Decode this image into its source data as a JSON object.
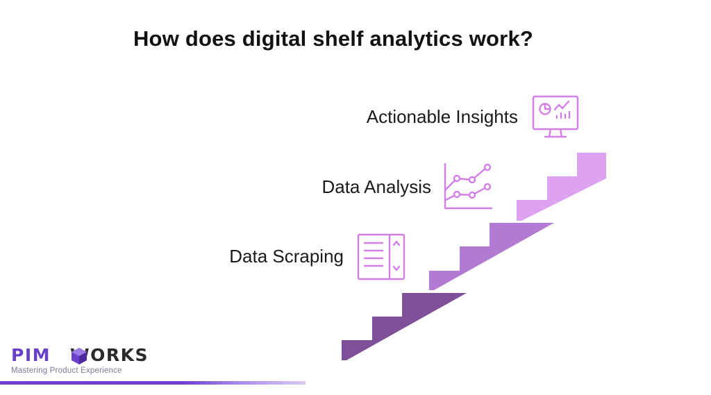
{
  "title": "How does digital shelf analytics work?",
  "steps": [
    {
      "label": "Actionable Insights",
      "icon": "monitor-dashboard-icon",
      "color": "#dda2f2"
    },
    {
      "label": "Data Analysis",
      "icon": "line-graph-icon",
      "color": "#b27ad2"
    },
    {
      "label": "Data Scraping",
      "icon": "document-list-icon",
      "color": "#7f4f99"
    }
  ],
  "icon_color": "#d37ee9",
  "logo": {
    "pim": "PIM",
    "works": "WORKS",
    "tagline": "Mastering Product Experience",
    "brand_color": "#6a3fc9"
  }
}
